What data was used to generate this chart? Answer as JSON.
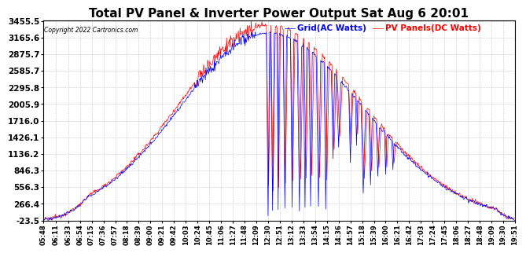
{
  "title": "Total PV Panel & Inverter Power Output Sat Aug 6 20:01",
  "copyright": "Copyright 2022 Cartronics.com",
  "legend_blue": "Grid(AC Watts)",
  "legend_red": "PV Panels(DC Watts)",
  "background_color": "#ffffff",
  "grid_color": "#bbbbbb",
  "y_min": -23.5,
  "y_max": 3455.5,
  "yticks": [
    3455.5,
    3165.6,
    2875.7,
    2585.7,
    2295.8,
    2005.9,
    1716.0,
    1426.1,
    1136.2,
    846.3,
    556.3,
    266.4,
    -23.5
  ],
  "x_labels": [
    "05:48",
    "06:11",
    "06:33",
    "06:54",
    "07:15",
    "07:36",
    "07:57",
    "08:18",
    "08:39",
    "09:00",
    "09:21",
    "09:42",
    "10:03",
    "10:24",
    "10:45",
    "11:06",
    "11:27",
    "11:48",
    "12:09",
    "12:30",
    "12:51",
    "13:12",
    "13:33",
    "13:54",
    "14:15",
    "14:36",
    "14:57",
    "15:18",
    "15:39",
    "16:00",
    "16:21",
    "16:42",
    "17:03",
    "17:24",
    "17:45",
    "18:06",
    "18:27",
    "18:48",
    "19:09",
    "19:30",
    "19:51"
  ],
  "line_blue_color": "#0000ff",
  "line_red_color": "#ff0000",
  "title_fontsize": 11,
  "ytick_fontsize": 7.5,
  "xtick_fontsize": 6
}
